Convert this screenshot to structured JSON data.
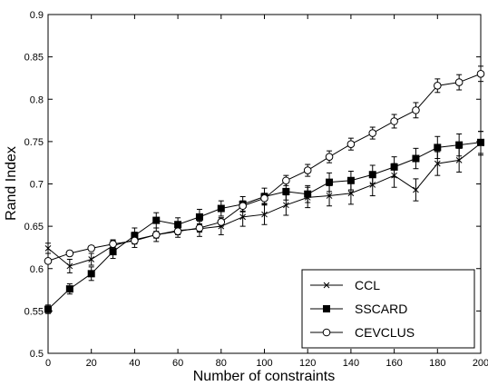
{
  "chart_data": {
    "type": "line",
    "title": "",
    "xlabel": "Number of constraints",
    "ylabel": "Rand Index",
    "xlim": [
      0,
      200
    ],
    "ylim": [
      0.5,
      0.9
    ],
    "xticks": [
      0,
      20,
      40,
      60,
      80,
      100,
      120,
      140,
      160,
      180,
      200
    ],
    "yticks": [
      0.5,
      0.55,
      0.6,
      0.65,
      0.7,
      0.75,
      0.8,
      0.85,
      0.9
    ],
    "xtick_labels": [
      "0",
      "20",
      "40",
      "60",
      "80",
      "100",
      "120",
      "140",
      "160",
      "180",
      "200"
    ],
    "ytick_labels": [
      "0.5",
      "0.55",
      "0.6",
      "0.65",
      "0.7",
      "0.75",
      "0.8",
      "0.85",
      "0.9"
    ],
    "grid": false,
    "legend_position": "bottom-right",
    "x": [
      0,
      10,
      20,
      30,
      40,
      50,
      60,
      70,
      80,
      90,
      100,
      110,
      120,
      130,
      140,
      150,
      160,
      170,
      180,
      190,
      200
    ],
    "series": [
      {
        "name": "CCL",
        "marker": "x",
        "values": [
          0.624,
          0.603,
          0.611,
          0.627,
          0.634,
          0.64,
          0.645,
          0.647,
          0.65,
          0.661,
          0.664,
          0.675,
          0.684,
          0.686,
          0.689,
          0.699,
          0.71,
          0.693,
          0.724,
          0.728,
          0.748
        ],
        "errors": [
          0.006,
          0.008,
          0.007,
          0.007,
          0.009,
          0.008,
          0.008,
          0.009,
          0.01,
          0.011,
          0.012,
          0.012,
          0.012,
          0.012,
          0.013,
          0.013,
          0.014,
          0.013,
          0.014,
          0.014,
          0.014
        ]
      },
      {
        "name": "SSCARD",
        "marker": "square",
        "values": [
          0.552,
          0.576,
          0.594,
          0.62,
          0.639,
          0.657,
          0.652,
          0.661,
          0.671,
          0.676,
          0.685,
          0.691,
          0.688,
          0.702,
          0.704,
          0.711,
          0.72,
          0.73,
          0.743,
          0.746,
          0.749
        ],
        "errors": [
          0.005,
          0.006,
          0.008,
          0.008,
          0.009,
          0.009,
          0.008,
          0.009,
          0.009,
          0.009,
          0.01,
          0.01,
          0.01,
          0.011,
          0.011,
          0.011,
          0.012,
          0.012,
          0.013,
          0.013,
          0.013
        ]
      },
      {
        "name": "CEVCLUS",
        "marker": "circle",
        "values": [
          0.609,
          0.618,
          0.624,
          0.629,
          0.633,
          0.64,
          0.644,
          0.648,
          0.655,
          0.674,
          0.683,
          0.704,
          0.716,
          0.732,
          0.747,
          0.76,
          0.774,
          0.787,
          0.816,
          0.82,
          0.83
        ],
        "errors": [
          0.003,
          0.003,
          0.003,
          0.004,
          0.004,
          0.004,
          0.004,
          0.005,
          0.005,
          0.006,
          0.006,
          0.006,
          0.007,
          0.007,
          0.007,
          0.007,
          0.008,
          0.009,
          0.008,
          0.009,
          0.009
        ]
      }
    ]
  }
}
